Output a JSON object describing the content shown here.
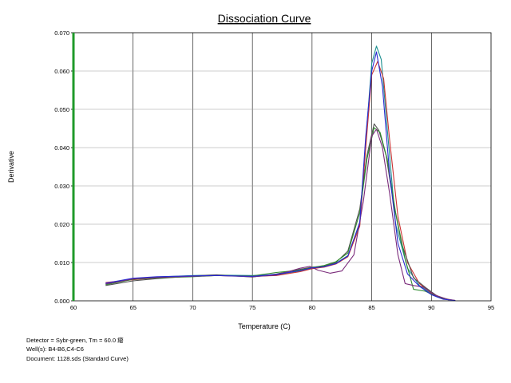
{
  "chart_data": {
    "type": "line",
    "title": "Dissociation Curve",
    "xlabel": "Temperature (C)",
    "ylabel": "Derivative",
    "xlim": [
      60,
      95
    ],
    "ylim": [
      0,
      0.07
    ],
    "x_ticks": [
      "60",
      "65",
      "70",
      "75",
      "80",
      "85",
      "90",
      "95"
    ],
    "y_ticks": [
      "0.000",
      "0.010",
      "0.020",
      "0.030",
      "0.040",
      "0.050",
      "0.060",
      "0.070"
    ],
    "grid": true,
    "series": [
      {
        "color": "#1c8f8f",
        "points": [
          [
            62.7,
            0.0045
          ],
          [
            65,
            0.0058
          ],
          [
            67,
            0.0062
          ],
          [
            70,
            0.0066
          ],
          [
            72,
            0.0067
          ],
          [
            75,
            0.0066
          ],
          [
            77,
            0.0068
          ],
          [
            79,
            0.0078
          ],
          [
            80,
            0.0085
          ],
          [
            81,
            0.009
          ],
          [
            82,
            0.0098
          ],
          [
            83,
            0.0118
          ],
          [
            84,
            0.02
          ],
          [
            84.5,
            0.042
          ],
          [
            85,
            0.062
          ],
          [
            85.4,
            0.0665
          ],
          [
            85.8,
            0.063
          ],
          [
            86.3,
            0.045
          ],
          [
            87,
            0.02
          ],
          [
            88,
            0.0085
          ],
          [
            89,
            0.004
          ],
          [
            90,
            0.0018
          ],
          [
            91,
            0.0005
          ],
          [
            92,
            0.0001
          ]
        ]
      },
      {
        "color": "#cc3333",
        "points": [
          [
            62.7,
            0.0048
          ],
          [
            65,
            0.0055
          ],
          [
            67,
            0.006
          ],
          [
            70,
            0.0064
          ],
          [
            72,
            0.0066
          ],
          [
            75,
            0.0064
          ],
          [
            77,
            0.0066
          ],
          [
            79,
            0.0076
          ],
          [
            80,
            0.0084
          ],
          [
            81,
            0.0088
          ],
          [
            82,
            0.0096
          ],
          [
            83,
            0.0115
          ],
          [
            84,
            0.0195
          ],
          [
            84.5,
            0.04
          ],
          [
            85,
            0.059
          ],
          [
            85.5,
            0.0625
          ],
          [
            86,
            0.058
          ],
          [
            86.5,
            0.042
          ],
          [
            87.2,
            0.022
          ],
          [
            88,
            0.01
          ],
          [
            89,
            0.0045
          ],
          [
            90,
            0.002
          ],
          [
            91,
            0.0006
          ],
          [
            92,
            0.0001
          ]
        ]
      },
      {
        "color": "#505050",
        "points": [
          [
            62.7,
            0.004
          ],
          [
            65,
            0.0052
          ],
          [
            67,
            0.0058
          ],
          [
            70,
            0.0065
          ],
          [
            72,
            0.0068
          ],
          [
            75,
            0.0062
          ],
          [
            77,
            0.007
          ],
          [
            79,
            0.0082
          ],
          [
            80,
            0.0088
          ],
          [
            81,
            0.009
          ],
          [
            82,
            0.01
          ],
          [
            83,
            0.013
          ],
          [
            84,
            0.024
          ],
          [
            84.6,
            0.038
          ],
          [
            85.2,
            0.0462
          ],
          [
            85.6,
            0.0445
          ],
          [
            86.2,
            0.038
          ],
          [
            86.8,
            0.026
          ],
          [
            87.5,
            0.015
          ],
          [
            88.5,
            0.006
          ],
          [
            89.5,
            0.0035
          ],
          [
            90.5,
            0.0012
          ],
          [
            91.5,
            0.0003
          ]
        ]
      },
      {
        "color": "#2e8b2e",
        "points": [
          [
            62.7,
            0.0042
          ],
          [
            65,
            0.0056
          ],
          [
            67,
            0.006
          ],
          [
            70,
            0.0063
          ],
          [
            72,
            0.0066
          ],
          [
            75,
            0.0065
          ],
          [
            77,
            0.0074
          ],
          [
            79,
            0.008
          ],
          [
            80,
            0.0087
          ],
          [
            81,
            0.0092
          ],
          [
            82,
            0.0102
          ],
          [
            83,
            0.0125
          ],
          [
            84,
            0.023
          ],
          [
            84.6,
            0.037
          ],
          [
            85.2,
            0.0452
          ],
          [
            85.7,
            0.044
          ],
          [
            86.3,
            0.037
          ],
          [
            87,
            0.023
          ],
          [
            87.8,
            0.011
          ],
          [
            88.5,
            0.003
          ],
          [
            89.5,
            0.0025
          ],
          [
            90.5,
            0.001
          ],
          [
            91.5,
            0.0002
          ]
        ]
      },
      {
        "color": "#7a2a7a",
        "points": [
          [
            62.7,
            0.0044
          ],
          [
            65,
            0.0057
          ],
          [
            67,
            0.0061
          ],
          [
            70,
            0.0064
          ],
          [
            72,
            0.0066
          ],
          [
            75,
            0.0063
          ],
          [
            77,
            0.0067
          ],
          [
            79,
            0.0085
          ],
          [
            79.8,
            0.009
          ],
          [
            80.5,
            0.008
          ],
          [
            81.5,
            0.0072
          ],
          [
            82.5,
            0.0078
          ],
          [
            83.5,
            0.012
          ],
          [
            84.3,
            0.026
          ],
          [
            85,
            0.043
          ],
          [
            85.4,
            0.0448
          ],
          [
            85.9,
            0.04
          ],
          [
            86.5,
            0.028
          ],
          [
            87.2,
            0.012
          ],
          [
            87.8,
            0.0045
          ],
          [
            88.5,
            0.004
          ],
          [
            89.3,
            0.0036
          ],
          [
            90.3,
            0.0015
          ],
          [
            91.5,
            0.0002
          ]
        ]
      },
      {
        "color": "#2a2ad0",
        "points": [
          [
            62.7,
            0.0046
          ],
          [
            65,
            0.0059
          ],
          [
            67,
            0.0063
          ],
          [
            70,
            0.0065
          ],
          [
            72,
            0.0066
          ],
          [
            75,
            0.0064
          ],
          [
            77,
            0.0069
          ],
          [
            79,
            0.0079
          ],
          [
            80,
            0.0086
          ],
          [
            81,
            0.0089
          ],
          [
            82,
            0.0097
          ],
          [
            83,
            0.0117
          ],
          [
            84,
            0.0205
          ],
          [
            84.5,
            0.043
          ],
          [
            85,
            0.06
          ],
          [
            85.4,
            0.065
          ],
          [
            85.9,
            0.056
          ],
          [
            86.5,
            0.033
          ],
          [
            87.2,
            0.015
          ],
          [
            88,
            0.007
          ],
          [
            89,
            0.0038
          ],
          [
            90,
            0.0016
          ],
          [
            91,
            0.0004
          ],
          [
            92,
            0.0001
          ]
        ]
      }
    ]
  },
  "info": {
    "detector": "Detector = Sybr-green, Tm = 60.0 癈",
    "wells": "Well(s): B4-B6,C4-C6",
    "document": "Document: 1128.sds (Standard Curve)"
  }
}
